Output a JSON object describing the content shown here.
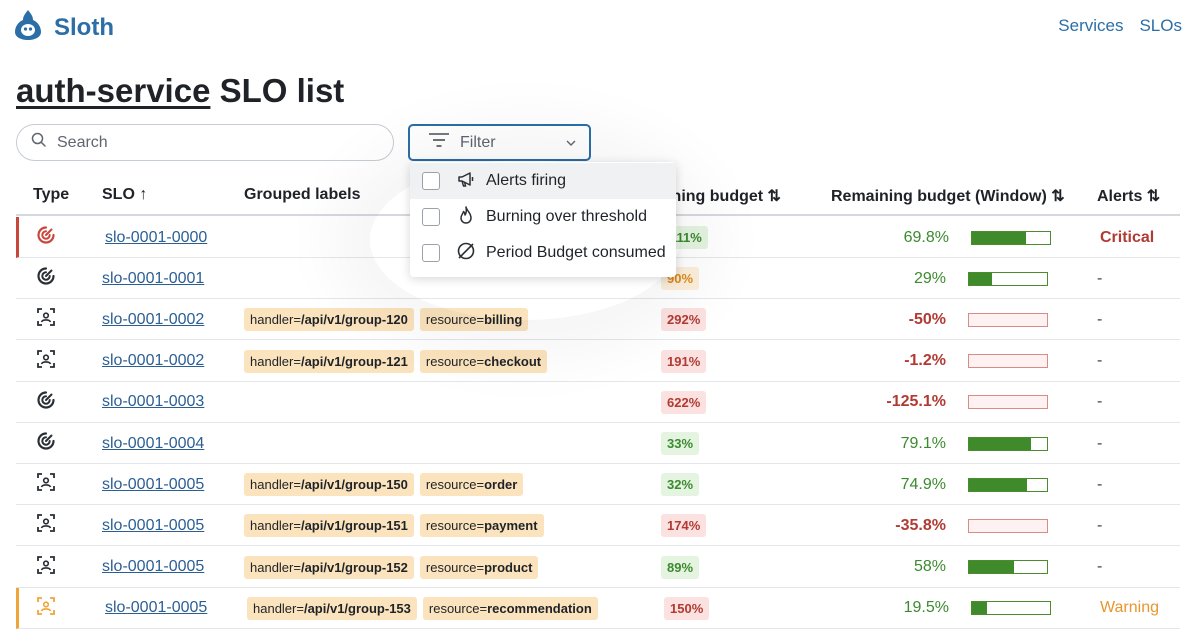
{
  "app": {
    "name": "Sloth"
  },
  "nav": {
    "services": "Services",
    "slos": "SLOs"
  },
  "page": {
    "service": "auth-service",
    "title_suffix": " SLO list"
  },
  "search": {
    "placeholder": "Search"
  },
  "filter": {
    "label": "Filter",
    "options": [
      "Alerts firing",
      "Burning over threshold",
      "Period Budget consumed"
    ]
  },
  "table": {
    "headers": {
      "type": "Type",
      "slo": "SLO ↑",
      "labels": "Grouped labels",
      "burning": "Burning budget ⇅",
      "remaining": "Remaining budget (Window) ⇅",
      "alerts": "Alerts ⇅"
    },
    "rows": [
      {
        "status": "critical",
        "icon": "gauge-icon",
        "slo": "slo-0001-0000",
        "labels": [],
        "burning": "111%",
        "burning_level": "ok",
        "remaining": "69.8%",
        "remaining_level": "ok",
        "budget_fraction": 0.698,
        "alert": "Critical"
      },
      {
        "status": "none",
        "icon": "gauge-icon",
        "slo": "slo-0001-0001",
        "labels": [],
        "burning": "90%",
        "burning_level": "warn",
        "remaining": "29%",
        "remaining_level": "ok",
        "budget_fraction": 0.29,
        "alert": "-"
      },
      {
        "status": "none",
        "icon": "scan-icon",
        "slo": "slo-0001-0002",
        "labels": [
          {
            "key": "handler=",
            "value": "/api/v1/group-120"
          },
          {
            "key": "resource=",
            "value": "billing"
          }
        ],
        "burning": "292%",
        "burning_level": "bad",
        "remaining": "-50%",
        "remaining_level": "bad",
        "budget_fraction": 0,
        "alert": "-"
      },
      {
        "status": "none",
        "icon": "scan-icon",
        "slo": "slo-0001-0002",
        "labels": [
          {
            "key": "handler=",
            "value": "/api/v1/group-121"
          },
          {
            "key": "resource=",
            "value": "checkout"
          }
        ],
        "burning": "191%",
        "burning_level": "bad",
        "remaining": "-1.2%",
        "remaining_level": "bad",
        "budget_fraction": 0,
        "alert": "-"
      },
      {
        "status": "none",
        "icon": "gauge-icon",
        "slo": "slo-0001-0003",
        "labels": [],
        "burning": "622%",
        "burning_level": "bad",
        "remaining": "-125.1%",
        "remaining_level": "bad",
        "budget_fraction": 0,
        "alert": "-"
      },
      {
        "status": "none",
        "icon": "gauge-icon",
        "slo": "slo-0001-0004",
        "labels": [],
        "burning": "33%",
        "burning_level": "ok",
        "remaining": "79.1%",
        "remaining_level": "ok",
        "budget_fraction": 0.791,
        "alert": "-"
      },
      {
        "status": "none",
        "icon": "scan-icon",
        "slo": "slo-0001-0005",
        "labels": [
          {
            "key": "handler=",
            "value": "/api/v1/group-150"
          },
          {
            "key": "resource=",
            "value": "order"
          }
        ],
        "burning": "32%",
        "burning_level": "ok",
        "remaining": "74.9%",
        "remaining_level": "ok",
        "budget_fraction": 0.749,
        "alert": "-"
      },
      {
        "status": "none",
        "icon": "scan-icon",
        "slo": "slo-0001-0005",
        "labels": [
          {
            "key": "handler=",
            "value": "/api/v1/group-151"
          },
          {
            "key": "resource=",
            "value": "payment"
          }
        ],
        "burning": "174%",
        "burning_level": "bad",
        "remaining": "-35.8%",
        "remaining_level": "bad",
        "budget_fraction": 0,
        "alert": "-"
      },
      {
        "status": "none",
        "icon": "scan-icon",
        "slo": "slo-0001-0005",
        "labels": [
          {
            "key": "handler=",
            "value": "/api/v1/group-152"
          },
          {
            "key": "resource=",
            "value": "product"
          }
        ],
        "burning": "89%",
        "burning_level": "ok",
        "remaining": "58%",
        "remaining_level": "ok",
        "budget_fraction": 0.58,
        "alert": "-"
      },
      {
        "status": "warning",
        "icon": "scan-icon",
        "slo": "slo-0001-0005",
        "labels": [
          {
            "key": "handler=",
            "value": "/api/v1/group-153"
          },
          {
            "key": "resource=",
            "value": "recommendation"
          }
        ],
        "burning": "150%",
        "burning_level": "bad",
        "remaining": "19.5%",
        "remaining_level": "ok",
        "budget_fraction": 0.195,
        "alert": "Warning"
      }
    ]
  },
  "colors": {
    "brand": "#2b6ea8",
    "critical": "#c9463d",
    "warning": "#f0a53a",
    "ok": "#3b8a2e",
    "tag_background": "#fbe3bd"
  }
}
